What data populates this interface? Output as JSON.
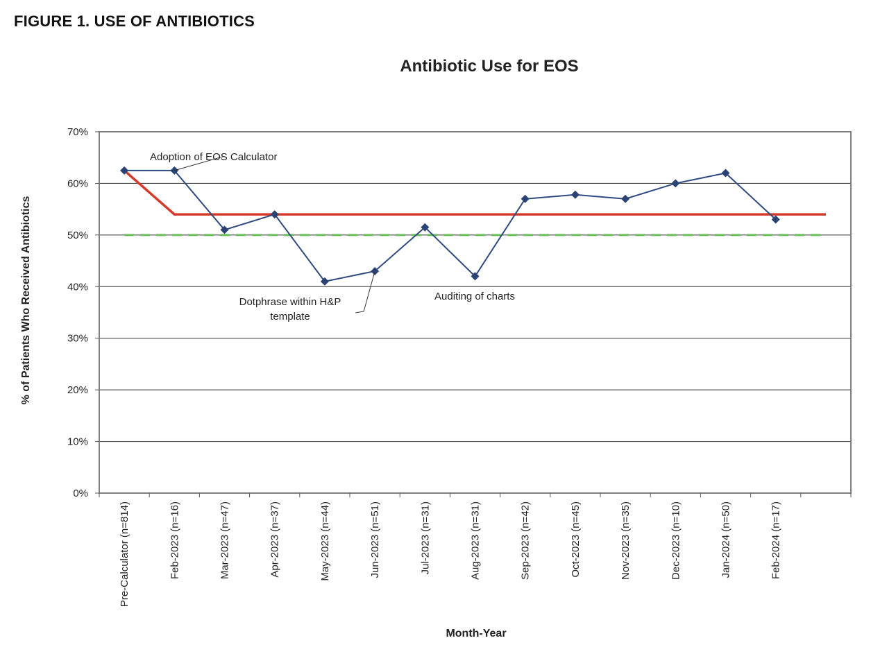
{
  "figure_caption": "FIGURE 1. USE OF ANTIBIOTICS",
  "chart_data": {
    "type": "line",
    "title": "Antibiotic Use for EOS",
    "xlabel": "Month-Year",
    "ylabel": "% of Patients Who Received Antibiotics",
    "ylim": [
      0,
      70
    ],
    "y_ticks": [
      "0%",
      "10%",
      "20%",
      "30%",
      "40%",
      "50%",
      "60%",
      "70%"
    ],
    "grid": "horizontal",
    "categories": [
      "Pre-Calculator (n=814)",
      "Feb-2023 (n=16)",
      "Mar-2023 (n=47)",
      "Apr-2023 (n=37)",
      "May-2023 (n=44)",
      "Jun-2023 (n=51)",
      "Jul-2023 (n=31)",
      "Aug-2023 (n=31)",
      "Sep-2023 (n=42)",
      "Oct-2023 (n=45)",
      "Nov-2023 (n=35)",
      "Dec-2023 (n=10)",
      "Jan-2024 (n=50)",
      "Feb-2024 (n=17)"
    ],
    "series": [
      {
        "values": [
          62.5,
          62.5,
          51,
          54,
          41,
          43,
          51.5,
          42,
          57,
          57.8,
          57,
          60,
          62,
          53
        ],
        "color": "#2f4a80"
      }
    ],
    "center_line": {
      "color": "#d63a2a",
      "segments": [
        {
          "x_from": 0,
          "x_to": 1,
          "y_from": 62.5,
          "y_to": 54
        },
        {
          "x_from": 1,
          "x_to": 14,
          "y_from": 54,
          "y_to": 54
        }
      ]
    },
    "goal_line": {
      "value": 50,
      "color": "#6abf5a",
      "style": "dashed"
    },
    "annotations": [
      {
        "text": "Adoption of EOS Calculator",
        "x_index": 1,
        "y": 62.5
      },
      {
        "text": [
          "Dotphrase within H&P",
          "template"
        ],
        "x_index": 5,
        "y": 43
      },
      {
        "text": "Auditing of charts",
        "x_index": 7,
        "y": 42
      }
    ]
  }
}
